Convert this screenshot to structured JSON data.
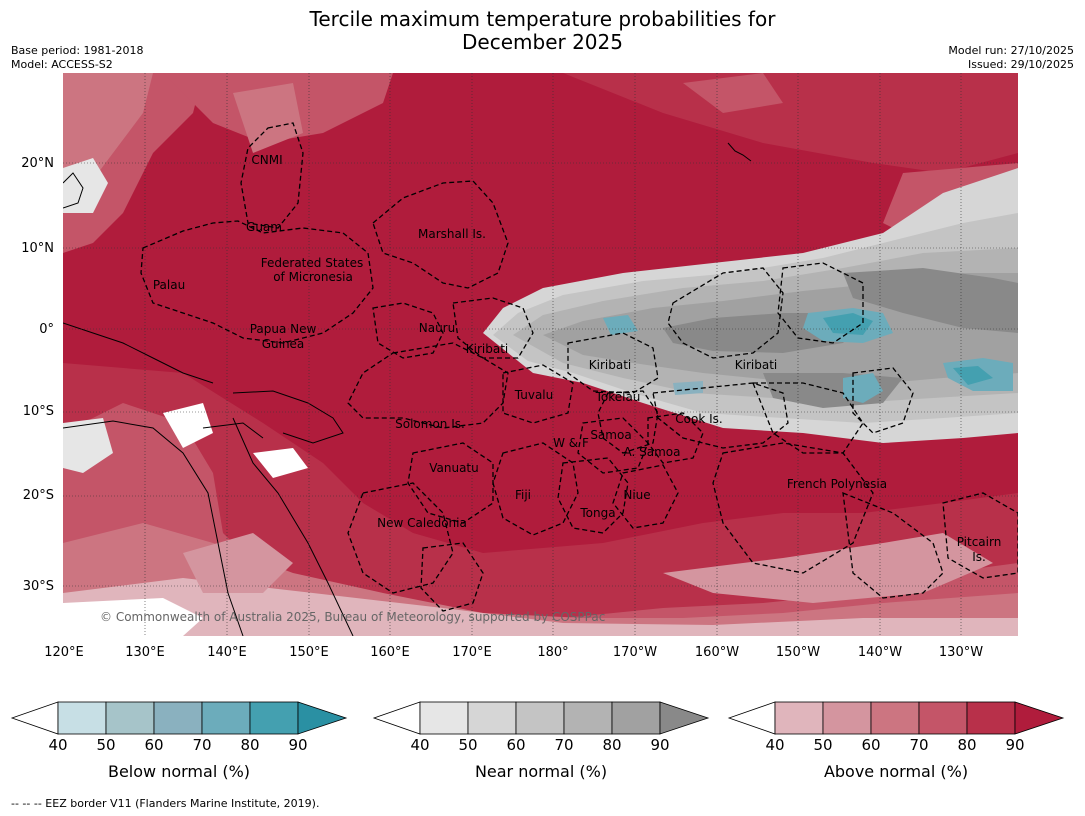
{
  "title_line1": "Tercile maximum temperature probabilities for",
  "title_line2": "December 2025",
  "base_period": "Base period: 1981-2018",
  "model": "Model: ACCESS-S2",
  "model_run": "Model run: 27/10/2025",
  "issued": "Issued: 29/10/2025",
  "lat_labels": [
    "20°N",
    "10°N",
    "0°",
    "10°S",
    "20°S",
    "30°S"
  ],
  "lon_labels": [
    "120°E",
    "130°E",
    "140°E",
    "150°E",
    "160°E",
    "170°E",
    "180°",
    "170°W",
    "160°W",
    "150°W",
    "140°W",
    "130°W"
  ],
  "regions": [
    "CNMI",
    "Guam",
    "Marshall Is.",
    "Federated States",
    "of Micronesia",
    "Palau",
    "Papua New",
    "Guinea",
    "Nauru",
    "Kiribati",
    "Kiribati",
    "Kiribati",
    "Tuvalu",
    "Tokelau",
    "Cook Is.",
    "Solomon Is.",
    "Samoa",
    "W & F",
    "A. Samoa",
    "Vanuatu",
    "Fiji",
    "Niue",
    "Tonga",
    "New Caledonia",
    "French Polynesia",
    "Pitcairn",
    "Is."
  ],
  "copyright": "© Commonwealth of Australia 2025, Bureau of Meteorology, supported by COSPPac",
  "colorbars": [
    {
      "title": "Below normal (%)",
      "ticks": [
        "40",
        "50",
        "60",
        "70",
        "80",
        "90"
      ],
      "colors": [
        "#ffffff",
        "#c7dfe5",
        "#a6c4c9",
        "#8ab1bf",
        "#6cacbb",
        "#44a0b0",
        "#2a90a3"
      ]
    },
    {
      "title": "Near normal (%)",
      "ticks": [
        "40",
        "50",
        "60",
        "70",
        "80",
        "90"
      ],
      "colors": [
        "#ffffff",
        "#e6e6e6",
        "#d6d6d6",
        "#c4c4c4",
        "#b3b3b3",
        "#a1a1a1",
        "#898989"
      ]
    },
    {
      "title": "Above normal (%)",
      "ticks": [
        "40",
        "50",
        "60",
        "70",
        "80",
        "90"
      ],
      "colors": [
        "#ffffff",
        "#e0b5bc",
        "#d4959f",
        "#cc7581",
        "#c45568",
        "#b8304a",
        "#b01c3c"
      ]
    }
  ],
  "footer": "--  --  -- EEZ border V11 (Flanders Marine Institute, 2019).",
  "colors": {
    "above90": "#b01c3c",
    "above80": "#b8304a",
    "above70": "#c45568",
    "above60": "#cc7581",
    "above50": "#d4959f",
    "above40": "#e0b5bc",
    "near80": "#898989",
    "near70": "#a1a1a1",
    "near60": "#b3b3b3",
    "near50": "#c4c4c4",
    "near40": "#d6d6d6",
    "below60": "#6cacbb",
    "below50": "#44a0b0",
    "low": "#e6e6e6",
    "land": "#000000"
  }
}
